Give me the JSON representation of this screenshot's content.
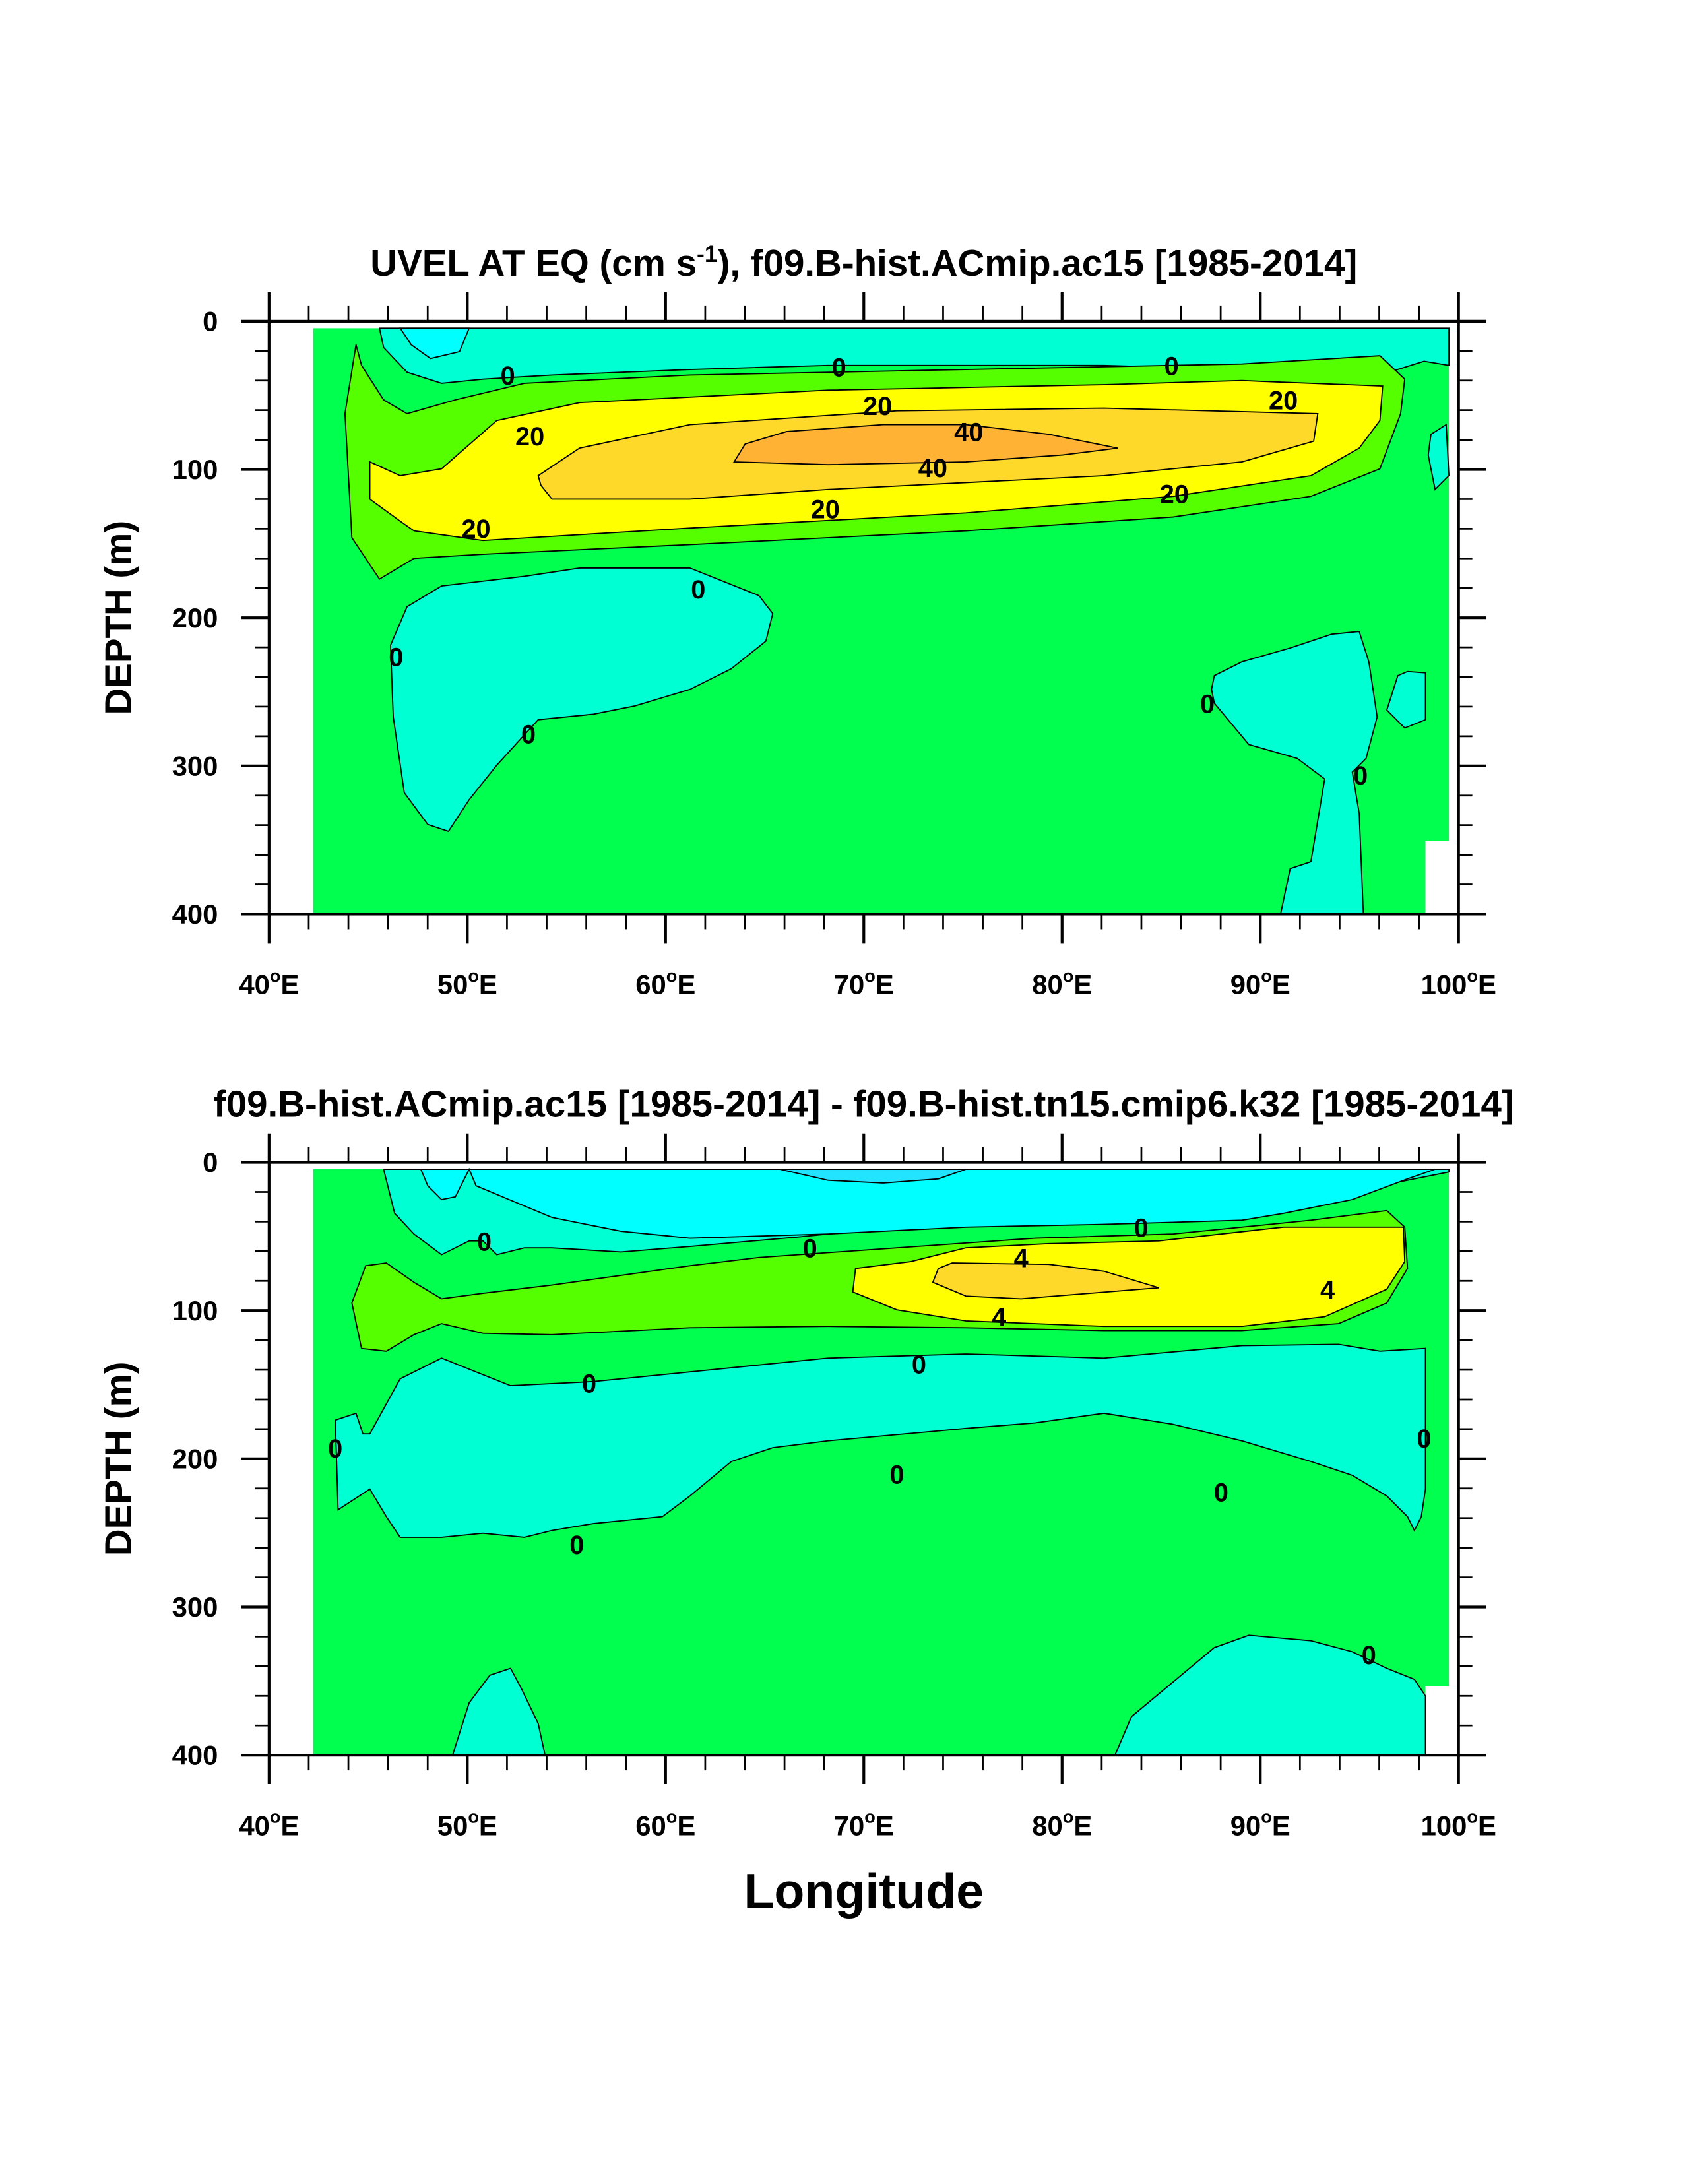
{
  "chart_data": [
    {
      "type": "heatmap",
      "subtype": "filled-contour",
      "title": "UVEL AT EQ (cm s-1), f09.B-hist.ACmip.ac15 [1985-2014]",
      "title_main": "UVEL AT EQ (cm s",
      "title_sup": "-1",
      "title_rest": "), f09.B-hist.ACmip.ac15 [1985-2014]",
      "xlabel": "",
      "ylabel": "DEPTH (m)",
      "xlim": [
        40,
        100
      ],
      "ylim": [
        400,
        0
      ],
      "xticks": [
        "40",
        "50",
        "60",
        "70",
        "80",
        "90",
        "100"
      ],
      "yticks": [
        "0",
        "100",
        "200",
        "300",
        "400"
      ],
      "contour_levels": [
        0,
        20,
        40
      ],
      "contour_labels": [
        "0",
        "0",
        "0",
        "20",
        "20",
        "20",
        "20",
        "20",
        "20",
        "40",
        "40",
        "0",
        "0",
        "0",
        "0",
        "0"
      ],
      "max_value_region": "~40-50 cm/s core near 70-80E at ~85 m depth"
    },
    {
      "type": "heatmap",
      "subtype": "filled-contour",
      "title": "f09.B-hist.ACmip.ac15 [1985-2014] - f09.B-hist.tn15.cmip6.k32 [1985-2014]",
      "xlabel": "Longitude",
      "ylabel": "DEPTH (m)",
      "xlim": [
        40,
        100
      ],
      "ylim": [
        400,
        0
      ],
      "xticks": [
        "40",
        "50",
        "60",
        "70",
        "80",
        "90",
        "100"
      ],
      "yticks": [
        "0",
        "100",
        "200",
        "300",
        "400"
      ],
      "contour_levels": [
        0,
        4
      ],
      "contour_labels": [
        "0",
        "0",
        "0",
        "4",
        "4",
        "4",
        "0",
        "0",
        "0",
        "0",
        "0",
        "0",
        "0",
        "0"
      ]
    }
  ],
  "degree_suffix": "E",
  "degree_sign": "o",
  "colors": {
    "cyan": "#00ffff",
    "teal": "#00ffd2",
    "green": "#00ff4e",
    "light_green": "#55ff00",
    "yellow": "#ffff00",
    "gold": "#ffd92a",
    "orange": "#ffb233",
    "blue_spot": "#22e4ff"
  }
}
